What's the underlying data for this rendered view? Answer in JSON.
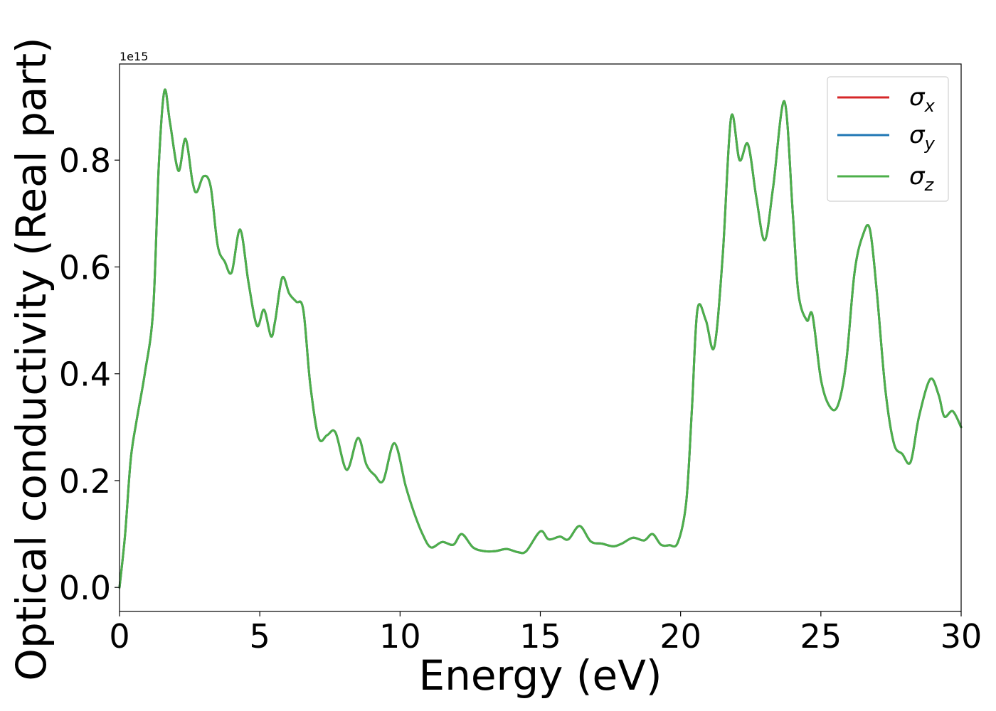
{
  "chart_data": {
    "type": "line",
    "title": "",
    "xlabel": "Energy (eV)",
    "ylabel": "Optical conductivity (Real part)",
    "y_offset_text": "1e15",
    "xlim": [
      0,
      30
    ],
    "ylim": [
      -0.045,
      0.98
    ],
    "y_scale_factor": 1000000000000000.0,
    "grid": false,
    "legend_position": "top-right",
    "x_ticks": [
      0,
      5,
      10,
      15,
      20,
      25,
      30
    ],
    "x_tick_labels": [
      "0",
      "5",
      "10",
      "15",
      "20",
      "25",
      "30"
    ],
    "y_ticks": [
      0.0,
      0.2,
      0.4,
      0.6,
      0.8
    ],
    "y_tick_labels": [
      "0.0",
      "0.2",
      "0.4",
      "0.6",
      "0.8"
    ],
    "x": [
      0.0,
      0.2,
      0.4,
      0.6,
      0.9,
      1.2,
      1.4,
      1.6,
      1.8,
      2.1,
      2.35,
      2.6,
      2.75,
      3.0,
      3.25,
      3.5,
      3.75,
      4.0,
      4.3,
      4.6,
      4.9,
      5.15,
      5.4,
      5.55,
      5.8,
      6.05,
      6.3,
      6.55,
      6.8,
      7.1,
      7.4,
      7.7,
      8.1,
      8.5,
      8.8,
      9.1,
      9.4,
      9.8,
      10.2,
      10.5,
      10.8,
      11.1,
      11.5,
      11.9,
      12.2,
      12.6,
      13.0,
      13.4,
      13.8,
      14.2,
      14.5,
      15.0,
      15.3,
      15.7,
      16.0,
      16.4,
      16.8,
      17.2,
      17.6,
      17.9,
      18.3,
      18.7,
      19.0,
      19.3,
      19.6,
      19.9,
      20.2,
      20.4,
      20.6,
      20.9,
      21.2,
      21.5,
      21.8,
      22.1,
      22.4,
      22.7,
      23.0,
      23.3,
      23.7,
      24.0,
      24.2,
      24.5,
      24.7,
      25.0,
      25.3,
      25.6,
      25.9,
      26.2,
      26.5,
      26.75,
      27.0,
      27.3,
      27.6,
      27.9,
      28.2,
      28.5,
      28.9,
      29.2,
      29.4,
      29.7,
      30.0
    ],
    "series": [
      {
        "name": "σx",
        "color": "#d62728",
        "values": [
          0.0,
          0.1,
          0.24,
          0.31,
          0.4,
          0.52,
          0.79,
          0.93,
          0.87,
          0.78,
          0.84,
          0.76,
          0.74,
          0.77,
          0.75,
          0.64,
          0.61,
          0.59,
          0.67,
          0.57,
          0.49,
          0.52,
          0.47,
          0.5,
          0.58,
          0.55,
          0.535,
          0.52,
          0.38,
          0.28,
          0.285,
          0.29,
          0.22,
          0.28,
          0.23,
          0.21,
          0.2,
          0.27,
          0.19,
          0.14,
          0.1,
          0.075,
          0.085,
          0.08,
          0.1,
          0.075,
          0.068,
          0.068,
          0.072,
          0.066,
          0.068,
          0.105,
          0.09,
          0.095,
          0.09,
          0.115,
          0.086,
          0.082,
          0.077,
          0.082,
          0.093,
          0.088,
          0.1,
          0.08,
          0.079,
          0.084,
          0.16,
          0.33,
          0.52,
          0.5,
          0.45,
          0.62,
          0.88,
          0.8,
          0.83,
          0.73,
          0.65,
          0.75,
          0.91,
          0.7,
          0.55,
          0.5,
          0.51,
          0.39,
          0.34,
          0.34,
          0.42,
          0.59,
          0.66,
          0.67,
          0.55,
          0.37,
          0.27,
          0.25,
          0.235,
          0.32,
          0.39,
          0.36,
          0.32,
          0.33,
          0.3
        ]
      },
      {
        "name": "σy",
        "color": "#1f77b4",
        "values": [
          0.0,
          0.1,
          0.24,
          0.31,
          0.4,
          0.52,
          0.79,
          0.93,
          0.87,
          0.78,
          0.84,
          0.76,
          0.74,
          0.77,
          0.75,
          0.64,
          0.61,
          0.59,
          0.67,
          0.57,
          0.49,
          0.52,
          0.47,
          0.5,
          0.58,
          0.55,
          0.535,
          0.52,
          0.38,
          0.28,
          0.285,
          0.29,
          0.22,
          0.28,
          0.23,
          0.21,
          0.2,
          0.27,
          0.19,
          0.14,
          0.1,
          0.075,
          0.085,
          0.08,
          0.1,
          0.075,
          0.068,
          0.068,
          0.072,
          0.066,
          0.068,
          0.105,
          0.09,
          0.095,
          0.09,
          0.115,
          0.086,
          0.082,
          0.077,
          0.082,
          0.093,
          0.088,
          0.1,
          0.08,
          0.079,
          0.084,
          0.16,
          0.33,
          0.52,
          0.5,
          0.45,
          0.62,
          0.88,
          0.8,
          0.83,
          0.73,
          0.65,
          0.75,
          0.91,
          0.7,
          0.55,
          0.5,
          0.51,
          0.39,
          0.34,
          0.34,
          0.42,
          0.59,
          0.66,
          0.67,
          0.55,
          0.37,
          0.27,
          0.25,
          0.235,
          0.32,
          0.39,
          0.36,
          0.32,
          0.33,
          0.3
        ]
      },
      {
        "name": "σz",
        "color": "#4daf4a",
        "values": [
          0.0,
          0.1,
          0.24,
          0.31,
          0.4,
          0.52,
          0.79,
          0.93,
          0.87,
          0.78,
          0.84,
          0.76,
          0.74,
          0.77,
          0.75,
          0.64,
          0.61,
          0.59,
          0.67,
          0.57,
          0.49,
          0.52,
          0.47,
          0.5,
          0.58,
          0.55,
          0.535,
          0.52,
          0.38,
          0.28,
          0.285,
          0.29,
          0.22,
          0.28,
          0.23,
          0.21,
          0.2,
          0.27,
          0.19,
          0.14,
          0.1,
          0.075,
          0.085,
          0.08,
          0.1,
          0.075,
          0.068,
          0.068,
          0.072,
          0.066,
          0.068,
          0.105,
          0.09,
          0.095,
          0.09,
          0.115,
          0.086,
          0.082,
          0.077,
          0.082,
          0.093,
          0.088,
          0.1,
          0.08,
          0.079,
          0.084,
          0.16,
          0.33,
          0.52,
          0.5,
          0.45,
          0.62,
          0.88,
          0.8,
          0.83,
          0.73,
          0.65,
          0.75,
          0.91,
          0.7,
          0.55,
          0.5,
          0.51,
          0.39,
          0.34,
          0.34,
          0.42,
          0.59,
          0.66,
          0.67,
          0.55,
          0.37,
          0.27,
          0.25,
          0.235,
          0.32,
          0.39,
          0.36,
          0.32,
          0.33,
          0.3
        ]
      }
    ],
    "legend": [
      {
        "symbol": "σ",
        "subscript": "x",
        "color": "#d62728"
      },
      {
        "symbol": "σ",
        "subscript": "y",
        "color": "#1f77b4"
      },
      {
        "symbol": "σ",
        "subscript": "z",
        "color": "#4daf4a"
      }
    ]
  }
}
